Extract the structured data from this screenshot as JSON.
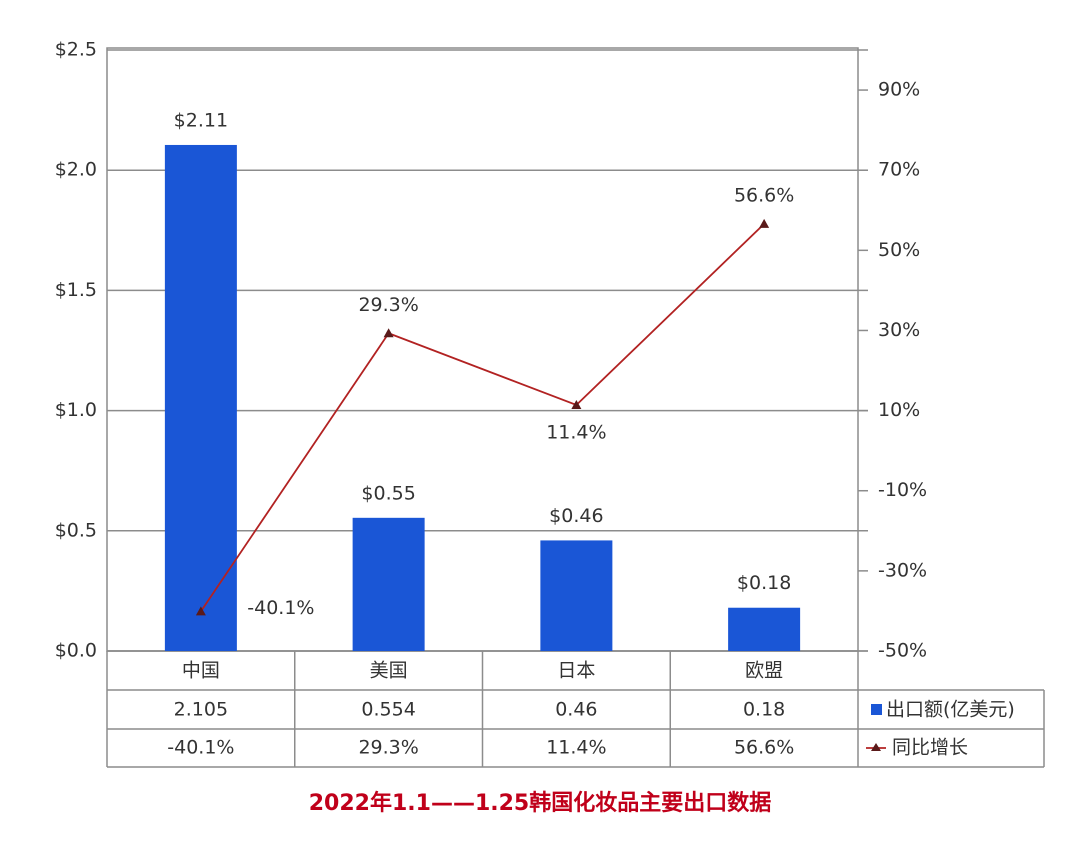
{
  "chart_data": {
    "type": "bar_line",
    "title": "2022年1.1——1.25韩国化妆品主要出口数据",
    "categories": [
      "中国",
      "美国",
      "日本",
      "欧盟"
    ],
    "series": [
      {
        "name": "出口额(亿美元)",
        "type": "bar",
        "color": "#1a56d6",
        "values": [
          2.105,
          0.554,
          0.46,
          0.18
        ],
        "value_labels": [
          "$2.11",
          "$0.55",
          "$0.46",
          "$0.18"
        ]
      },
      {
        "name": "同比增长",
        "type": "line",
        "axis": "y2",
        "color": "#b22222",
        "values": [
          -40.1,
          29.3,
          11.4,
          56.6
        ],
        "value_labels": [
          "-40.1%",
          "29.3%",
          "11.4%",
          "56.6%"
        ]
      }
    ],
    "ylim": [
      0,
      2.5
    ],
    "yticks": [
      {
        "value": 0,
        "label": "$0.0"
      },
      {
        "value": 0.5,
        "label": "$0.5"
      },
      {
        "value": 1,
        "label": "$1.0"
      },
      {
        "value": 1.5,
        "label": "$1.5"
      },
      {
        "value": 2,
        "label": "$2.0"
      },
      {
        "value": 2.5,
        "label": "$2.5"
      }
    ],
    "y2lim": [
      -50,
      100
    ],
    "y2ticks": [
      {
        "value": -50,
        "label": "-50%"
      },
      {
        "value": -30,
        "label": "-30%"
      },
      {
        "value": -10,
        "label": "-10%"
      },
      {
        "value": 10,
        "label": "10%"
      },
      {
        "value": 30,
        "label": "30%"
      },
      {
        "value": 50,
        "label": "50%"
      },
      {
        "value": 70,
        "label": "70%"
      },
      {
        "value": 90,
        "label": "90%"
      }
    ],
    "grid": true
  }
}
